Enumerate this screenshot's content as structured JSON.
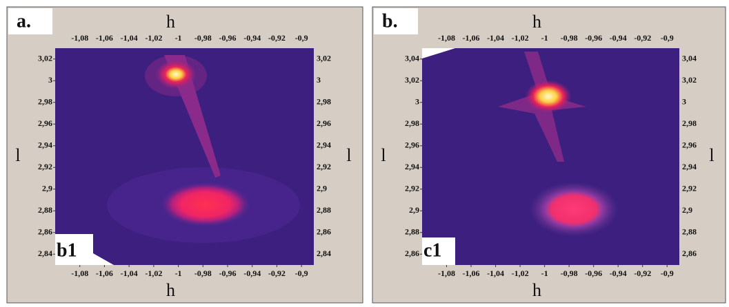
{
  "chart_data": [
    {
      "type": "map",
      "panel_label": "a.",
      "inset_label": "b1",
      "xlabel": "h",
      "ylabel": "l",
      "xlim": [
        -1.1,
        -0.89
      ],
      "ylim": [
        2.83,
        3.03
      ],
      "xticks": [
        {
          "value": -1.08,
          "label": "-1,08"
        },
        {
          "value": -1.06,
          "label": "-1,06"
        },
        {
          "value": -1.04,
          "label": "-1,04"
        },
        {
          "value": -1.02,
          "label": "-1,02"
        },
        -1,
        {
          "value": -0.98,
          "label": "-0,98"
        },
        {
          "value": -0.96,
          "label": "-0,96"
        },
        {
          "value": -0.94,
          "label": "-0,94"
        },
        {
          "value": -0.92,
          "label": "-0,92"
        },
        {
          "value": -0.9,
          "label": "-0,9"
        }
      ],
      "yticks": [
        {
          "value": 3.02,
          "label": "3,02"
        },
        3,
        {
          "value": 2.98,
          "label": "2,98"
        },
        {
          "value": 2.96,
          "label": "2,96"
        },
        {
          "value": 2.94,
          "label": "2,94"
        },
        {
          "value": 2.92,
          "label": "2,92"
        },
        {
          "value": 2.9,
          "label": "2,9"
        },
        {
          "value": 2.88,
          "label": "2,88"
        },
        {
          "value": 2.86,
          "label": "2,86"
        },
        {
          "value": 2.84,
          "label": "2,84"
        }
      ]
    },
    {
      "type": "map",
      "panel_label": "b.",
      "inset_label": "c1",
      "xlabel": "h",
      "ylabel": "l",
      "xlim": [
        -1.1,
        -0.89
      ],
      "ylim": [
        2.85,
        3.05
      ],
      "xticks": [
        {
          "value": -1.08,
          "label": "-1,08"
        },
        {
          "value": -1.06,
          "label": "-1,06"
        },
        {
          "value": -1.04,
          "label": "-1,04"
        },
        {
          "value": -1.02,
          "label": "-1,02"
        },
        -1,
        {
          "value": -0.98,
          "label": "-0,98"
        },
        {
          "value": -0.96,
          "label": "-0,96"
        },
        {
          "value": -0.94,
          "label": "-0,94"
        },
        {
          "value": -0.92,
          "label": "-0,92"
        },
        {
          "value": -0.9,
          "label": "-0,9"
        }
      ],
      "yticks": [
        {
          "value": 3.04,
          "label": "3,04"
        },
        {
          "value": 3.02,
          "label": "3,02"
        },
        3,
        {
          "value": 2.98,
          "label": "2,98"
        },
        {
          "value": 2.96,
          "label": "2,96"
        },
        {
          "value": 2.94,
          "label": "2,94"
        },
        {
          "value": 2.92,
          "label": "2,92"
        },
        {
          "value": 2.9,
          "label": "2,9"
        },
        {
          "value": 2.88,
          "label": "2,88"
        },
        {
          "value": 2.86,
          "label": "2,86"
        }
      ]
    }
  ]
}
